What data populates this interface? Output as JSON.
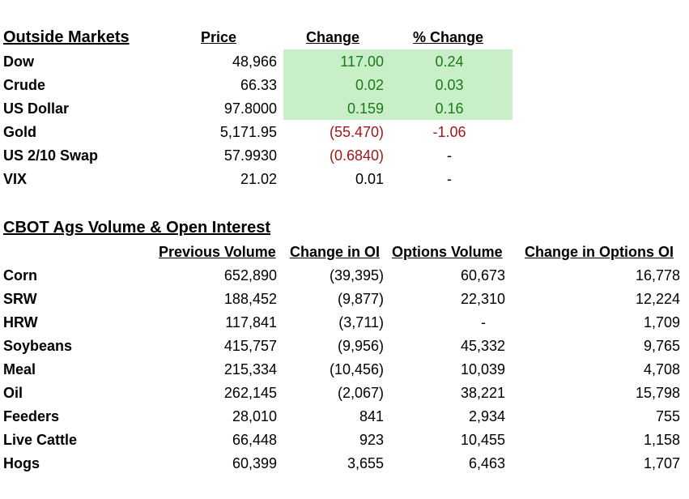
{
  "outside": {
    "title": "Outside Markets",
    "headers": {
      "price": "Price",
      "change": "Change",
      "pct": "% Change"
    },
    "rows": [
      {
        "name": "Dow",
        "price": "48,966",
        "change": "117.00",
        "pct": "0.24",
        "dir": "pos"
      },
      {
        "name": "Crude",
        "price": "66.33",
        "change": "0.02",
        "pct": "0.03",
        "dir": "pos"
      },
      {
        "name": "US Dollar",
        "price": "97.8000",
        "change": "0.159",
        "pct": "0.16",
        "dir": "pos"
      },
      {
        "name": "Gold",
        "price": "5,171.95",
        "change": "(55.470)",
        "pct": "-1.06",
        "dir": "neg"
      },
      {
        "name": "US 2/10 Swap",
        "price": "57.9930",
        "change": "(0.6840)",
        "pct": "-",
        "dir": "neg"
      },
      {
        "name": "VIX",
        "price": "21.02",
        "change": "0.01",
        "pct": "-",
        "dir": "none"
      }
    ],
    "colors": {
      "positive": "#1a7a1a",
      "negative": "#a01818",
      "highlight": "#c9efc8"
    }
  },
  "cbot": {
    "title": "CBOT Ags Volume & Open Interest",
    "headers": {
      "prev_vol": "Previous Volume",
      "chg_oi": "Change in OI",
      "opt_vol": "Options Volume",
      "chg_opt_oi": "Change in Options OI"
    },
    "rows": [
      {
        "name": "Corn",
        "prev_vol": "652,890",
        "chg_oi": "(39,395)",
        "opt_vol": "60,673",
        "chg_opt_oi": "16,778"
      },
      {
        "name": "SRW",
        "prev_vol": "188,452",
        "chg_oi": "(9,877)",
        "opt_vol": "22,310",
        "chg_opt_oi": "12,224"
      },
      {
        "name": "HRW",
        "prev_vol": "117,841",
        "chg_oi": "(3,711)",
        "opt_vol": "-",
        "chg_opt_oi": "1,709"
      },
      {
        "name": "Soybeans",
        "prev_vol": "415,757",
        "chg_oi": "(9,956)",
        "opt_vol": "45,332",
        "chg_opt_oi": "9,765"
      },
      {
        "name": "Meal",
        "prev_vol": "215,334",
        "chg_oi": "(10,456)",
        "opt_vol": "10,039",
        "chg_opt_oi": "4,708"
      },
      {
        "name": "Oil",
        "prev_vol": "262,145",
        "chg_oi": "(2,067)",
        "opt_vol": "38,221",
        "chg_opt_oi": "15,798"
      },
      {
        "name": "Feeders",
        "prev_vol": "28,010",
        "chg_oi": "841",
        "opt_vol": "2,934",
        "chg_opt_oi": "755"
      },
      {
        "name": "Live Cattle",
        "prev_vol": "66,448",
        "chg_oi": "923",
        "opt_vol": "10,455",
        "chg_opt_oi": "1,158"
      },
      {
        "name": "Hogs",
        "prev_vol": "60,399",
        "chg_oi": "3,655",
        "opt_vol": "6,463",
        "chg_opt_oi": "1,707"
      }
    ]
  }
}
